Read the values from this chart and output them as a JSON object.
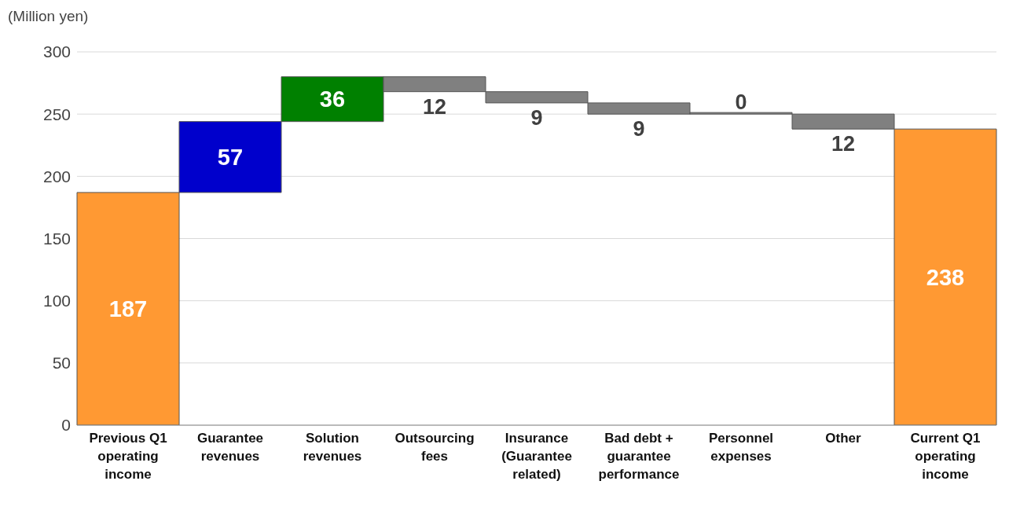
{
  "chart_data": {
    "type": "bar",
    "ylabel": "(Million yen)",
    "categories": [
      "Previous Q1 operating income",
      "Guarantee revenues",
      "Solution revenues",
      "Outsourcing fees",
      "Insurance (Guarantee related)",
      "Bad debt + guarantee performance",
      "Personnel expenses",
      "Other",
      "Current Q1 operating income"
    ],
    "values": [
      187,
      57,
      36,
      -12,
      -9,
      -9,
      0,
      -12,
      238
    ],
    "base": [
      0,
      187,
      244,
      280,
      268,
      259,
      250,
      250,
      0
    ],
    "value_labels": [
      "187",
      "57",
      "36",
      "12",
      "9",
      "9",
      "0",
      "12",
      "238"
    ],
    "colors": [
      "#ff9933",
      "#0000cc",
      "#008000",
      "#808080",
      "#808080",
      "#808080",
      "#808080",
      "#808080",
      "#ff9933"
    ],
    "ylim": [
      0,
      300
    ],
    "yticks": [
      0,
      50,
      100,
      150,
      200,
      250,
      300
    ],
    "grid": "y",
    "legend": false
  }
}
